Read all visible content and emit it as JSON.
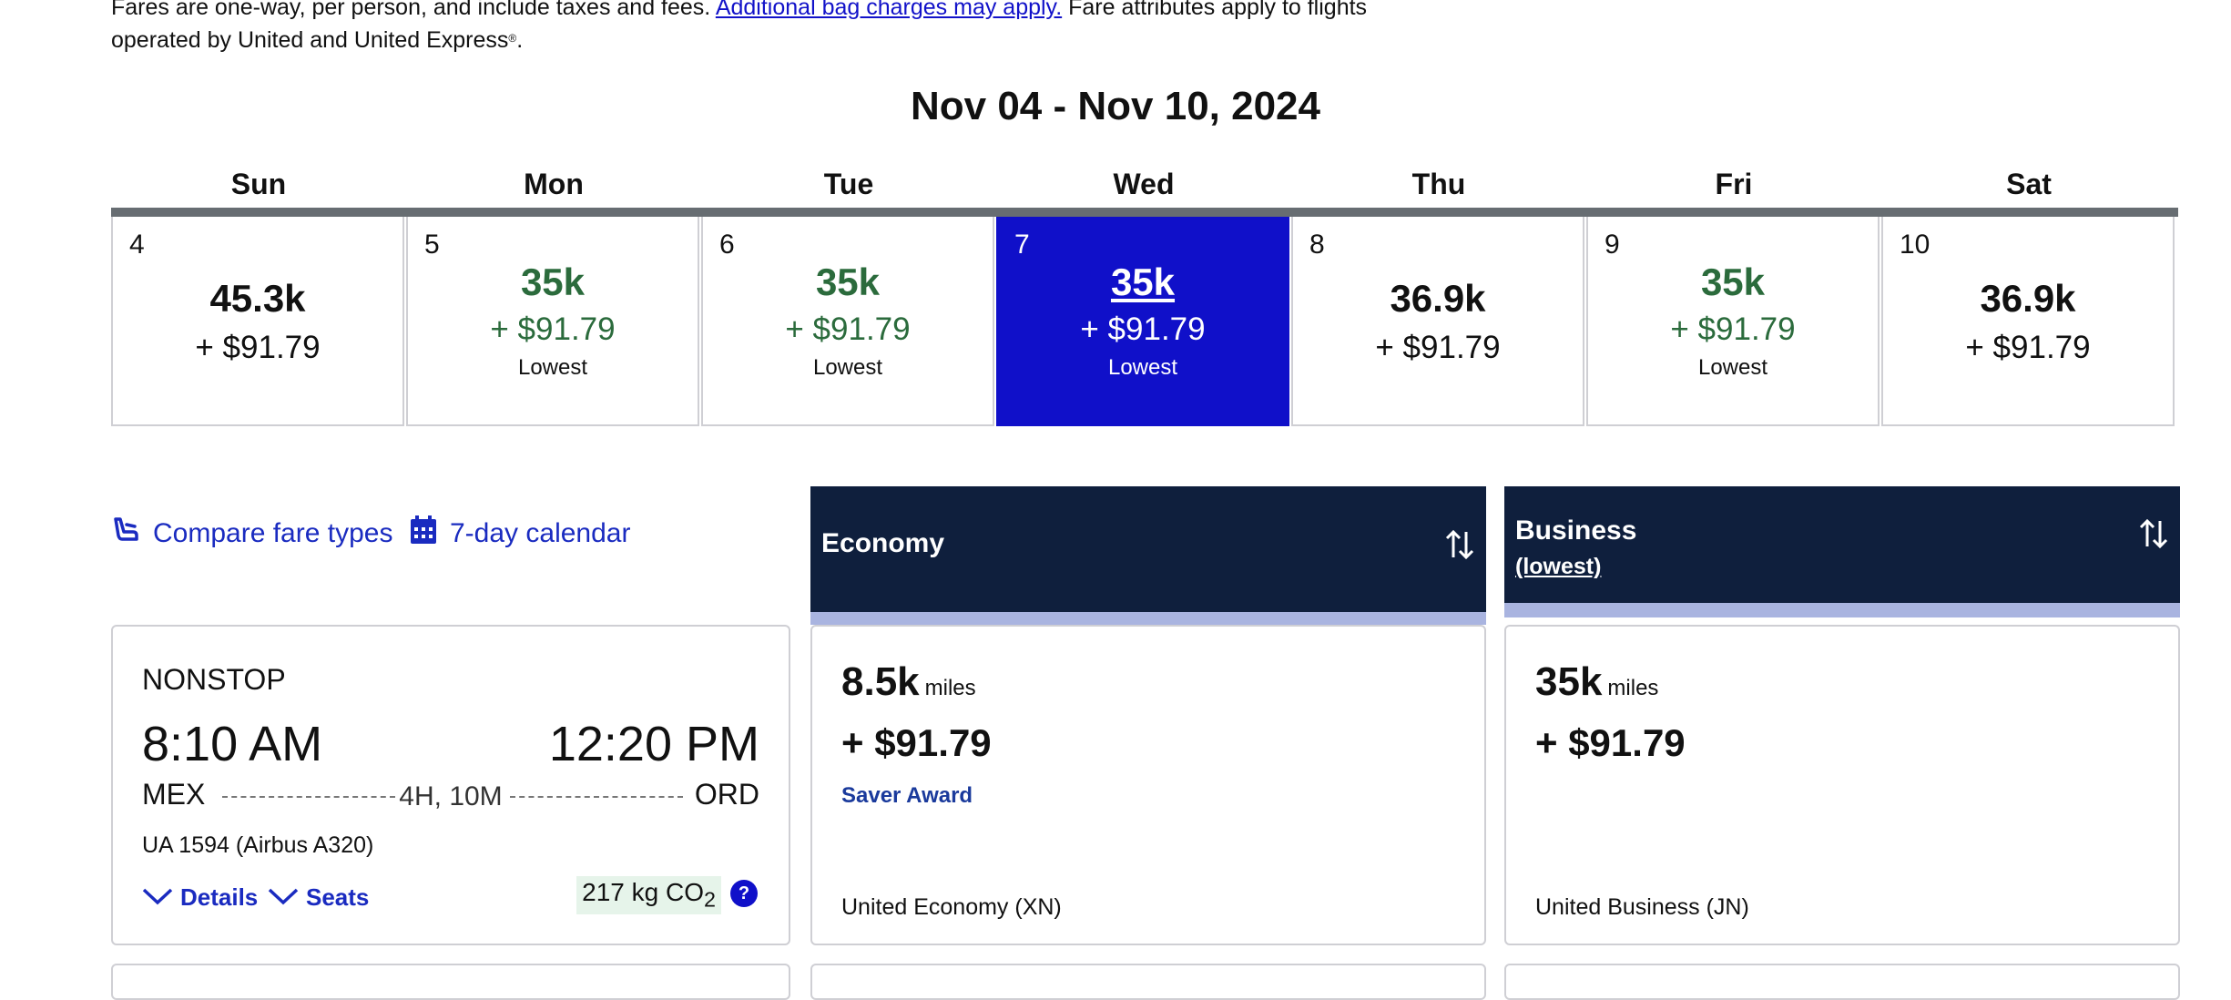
{
  "notice": {
    "text_before": "Fares are one-way, per person, and include taxes and fees. ",
    "link_label": "Additional bag charges may apply.",
    "text_after": " Fare attributes apply to flights operated by United and United Express",
    "reg_mark": "®",
    "end": "."
  },
  "week_title": "Nov 04 - Nov 10, 2024",
  "days": [
    {
      "dow": "Sun",
      "num": "4",
      "miles": "45.3k",
      "price": "+ $91.79",
      "lowest": ""
    },
    {
      "dow": "Mon",
      "num": "5",
      "miles": "35k",
      "price": "+ $91.79",
      "lowest": "Lowest"
    },
    {
      "dow": "Tue",
      "num": "6",
      "miles": "35k",
      "price": "+ $91.79",
      "lowest": "Lowest"
    },
    {
      "dow": "Wed",
      "num": "7",
      "miles": "35k",
      "price": "+ $91.79",
      "lowest": "Lowest",
      "selected": true
    },
    {
      "dow": "Thu",
      "num": "8",
      "miles": "36.9k",
      "price": "+ $91.79",
      "lowest": ""
    },
    {
      "dow": "Fri",
      "num": "9",
      "miles": "35k",
      "price": "+ $91.79",
      "lowest": "Lowest"
    },
    {
      "dow": "Sat",
      "num": "10",
      "miles": "36.9k",
      "price": "+ $91.79",
      "lowest": ""
    }
  ],
  "links": {
    "compare": "Compare fare types",
    "calendar": "7-day calendar"
  },
  "cabins": {
    "economy": {
      "title": "Economy"
    },
    "business": {
      "title": "Business",
      "sub": "(lowest)"
    }
  },
  "flight": {
    "stops": "NONSTOP",
    "depart_time": "8:10 AM",
    "arrive_time": "12:20 PM",
    "origin": "MEX",
    "destination": "ORD",
    "duration": "4H, 10M",
    "flight_info": "UA 1594 (Airbus A320)",
    "details_label": "Details",
    "seats_label": "Seats",
    "co2_value": "217 kg CO",
    "co2_sub": "2",
    "help": "?"
  },
  "fares": {
    "economy": {
      "miles": "8.5k",
      "miles_unit": "miles",
      "price": "+ $91.79",
      "award": "Saver Award",
      "class": "United Economy (XN)"
    },
    "business": {
      "miles": "35k",
      "miles_unit": "miles",
      "price": "+ $91.79",
      "class": "United Business (JN)"
    }
  },
  "colors": {
    "selected_day": "#1010c9",
    "lowest_green": "#2b6b3c",
    "cabin_header": "#0f1f3d",
    "link_blue": "#1a2bc0"
  }
}
